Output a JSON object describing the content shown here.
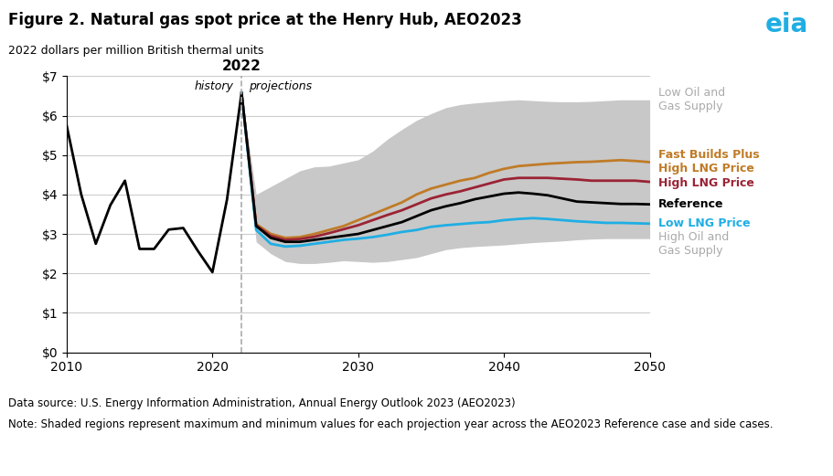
{
  "chart_data": {
    "type": "line",
    "title": "Figure 2. Natural gas spot price at the Henry Hub, AEO2023",
    "y_label": "2022 dollars per million British thermal units",
    "x": [
      2010,
      2011,
      2012,
      2013,
      2014,
      2015,
      2016,
      2017,
      2018,
      2019,
      2020,
      2021,
      2022,
      2023,
      2024,
      2025,
      2026,
      2027,
      2028,
      2029,
      2030,
      2031,
      2032,
      2033,
      2034,
      2035,
      2036,
      2037,
      2038,
      2039,
      2040,
      2041,
      2042,
      2043,
      2044,
      2045,
      2046,
      2047,
      2048,
      2049,
      2050
    ],
    "series": [
      {
        "name": "Fast Builds Plus\nHigh LNG Price",
        "color": "#c07b27",
        "values": [
          null,
          null,
          null,
          null,
          null,
          null,
          null,
          null,
          null,
          null,
          null,
          null,
          6.58,
          3.25,
          3.0,
          2.9,
          2.92,
          3.0,
          3.1,
          3.2,
          3.35,
          3.5,
          3.65,
          3.8,
          4.0,
          4.15,
          4.25,
          4.35,
          4.42,
          4.55,
          4.65,
          4.72,
          4.75,
          4.78,
          4.8,
          4.82,
          4.83,
          4.85,
          4.87,
          4.85,
          4.82
        ]
      },
      {
        "name": "High LNG Price",
        "color": "#9b2335",
        "values": [
          null,
          null,
          null,
          null,
          null,
          null,
          null,
          null,
          null,
          null,
          null,
          null,
          6.58,
          3.22,
          2.95,
          2.85,
          2.87,
          2.93,
          3.02,
          3.12,
          3.22,
          3.35,
          3.48,
          3.6,
          3.75,
          3.9,
          4.0,
          4.08,
          4.18,
          4.28,
          4.38,
          4.42,
          4.42,
          4.42,
          4.4,
          4.38,
          4.35,
          4.35,
          4.35,
          4.35,
          4.32
        ]
      },
      {
        "name": "Reference",
        "color": "#000000",
        "values": [
          5.75,
          4.0,
          2.75,
          3.73,
          4.35,
          2.62,
          2.62,
          3.11,
          3.15,
          2.57,
          2.03,
          3.87,
          6.58,
          3.2,
          2.9,
          2.8,
          2.8,
          2.85,
          2.9,
          2.95,
          3.0,
          3.1,
          3.2,
          3.3,
          3.45,
          3.6,
          3.7,
          3.78,
          3.88,
          3.95,
          4.02,
          4.05,
          4.02,
          3.98,
          3.9,
          3.82,
          3.8,
          3.78,
          3.76,
          3.76,
          3.75
        ]
      },
      {
        "name": "Low LNG Price",
        "color": "#1faee3",
        "values": [
          null,
          null,
          null,
          null,
          null,
          null,
          null,
          null,
          null,
          null,
          null,
          null,
          6.58,
          3.1,
          2.75,
          2.68,
          2.7,
          2.75,
          2.8,
          2.85,
          2.88,
          2.92,
          2.98,
          3.05,
          3.1,
          3.18,
          3.22,
          3.25,
          3.28,
          3.3,
          3.35,
          3.38,
          3.4,
          3.38,
          3.35,
          3.32,
          3.3,
          3.28,
          3.28,
          3.27,
          3.26
        ]
      }
    ],
    "band": {
      "color": "#c8c8c8",
      "label_color": "#aaaaaa",
      "upper_label": "Low Oil and\nGas Supply",
      "lower_label": "High Oil and\nGas Supply",
      "upper": [
        null,
        null,
        null,
        null,
        null,
        null,
        null,
        null,
        null,
        null,
        null,
        null,
        6.58,
        4.0,
        4.2,
        4.4,
        4.6,
        4.7,
        4.72,
        4.8,
        4.88,
        5.1,
        5.4,
        5.65,
        5.88,
        6.05,
        6.2,
        6.28,
        6.32,
        6.35,
        6.38,
        6.4,
        6.38,
        6.36,
        6.35,
        6.35,
        6.36,
        6.38,
        6.4,
        6.4,
        6.4
      ],
      "lower": [
        null,
        null,
        null,
        null,
        null,
        null,
        null,
        null,
        null,
        null,
        null,
        null,
        6.58,
        2.8,
        2.5,
        2.3,
        2.25,
        2.25,
        2.28,
        2.32,
        2.3,
        2.28,
        2.3,
        2.35,
        2.4,
        2.5,
        2.6,
        2.65,
        2.68,
        2.7,
        2.72,
        2.75,
        2.78,
        2.8,
        2.82,
        2.85,
        2.87,
        2.88,
        2.88,
        2.88,
        2.88
      ]
    },
    "divider": {
      "x": 2022,
      "color": "#aaaaaa",
      "label": "2022",
      "left_label": "history",
      "right_label": "projections"
    },
    "annotations": [
      {
        "text": "eia",
        "color": "#1faee3"
      }
    ],
    "source": "Data source: U.S. Energy Information Administration, Annual Energy Outlook 2023 (AEO2023)",
    "note": "Note: Shaded regions represent maximum and minimum values for each projection year across the AEO2023 Reference case and side cases.",
    "xlim": [
      2010,
      2050
    ],
    "xticks": [
      2010,
      2020,
      2030,
      2040,
      2050
    ],
    "ylim": [
      0,
      7
    ],
    "yticks": [
      {
        "value": 0,
        "label": "$0"
      },
      {
        "value": 1,
        "label": "$1"
      },
      {
        "value": 2,
        "label": "$2"
      },
      {
        "value": 3,
        "label": "$3"
      },
      {
        "value": 4,
        "label": "$4"
      },
      {
        "value": 5,
        "label": "$5"
      },
      {
        "value": 6,
        "label": "$6"
      },
      {
        "value": 7,
        "label": "$7"
      }
    ],
    "grid": "y"
  }
}
